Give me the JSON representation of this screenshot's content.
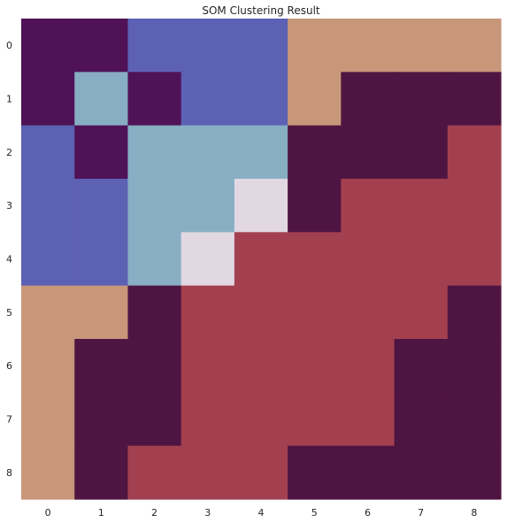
{
  "chart_data": {
    "type": "heatmap",
    "title": "SOM Clustering Result",
    "xlabel": "",
    "ylabel": "",
    "x_ticks": [
      "0",
      "1",
      "2",
      "3",
      "4",
      "5",
      "6",
      "7",
      "8"
    ],
    "y_ticks": [
      "0",
      "1",
      "2",
      "3",
      "4",
      "5",
      "6",
      "7",
      "8"
    ],
    "grid": false,
    "legend": "none",
    "colormap": "twilight",
    "cluster_colors": {
      "0": "#4f1257",
      "1": "#5d61b4",
      "2": "#88aec4",
      "3": "#e1d8e2",
      "4": "#c8977a",
      "5": "#a34050",
      "6": "#4f1542"
    },
    "grid_values": [
      [
        0,
        0,
        1,
        1,
        1,
        4,
        4,
        4,
        4
      ],
      [
        0,
        2,
        0,
        1,
        1,
        4,
        6,
        6,
        6
      ],
      [
        1,
        0,
        2,
        2,
        2,
        6,
        6,
        6,
        5
      ],
      [
        1,
        1,
        2,
        2,
        3,
        6,
        5,
        5,
        5
      ],
      [
        1,
        1,
        2,
        3,
        5,
        5,
        5,
        5,
        5
      ],
      [
        4,
        4,
        6,
        5,
        5,
        5,
        5,
        5,
        6
      ],
      [
        4,
        6,
        6,
        5,
        5,
        5,
        5,
        6,
        6
      ],
      [
        4,
        6,
        6,
        5,
        5,
        5,
        5,
        6,
        6
      ],
      [
        4,
        6,
        5,
        5,
        5,
        6,
        6,
        6,
        6
      ]
    ]
  }
}
